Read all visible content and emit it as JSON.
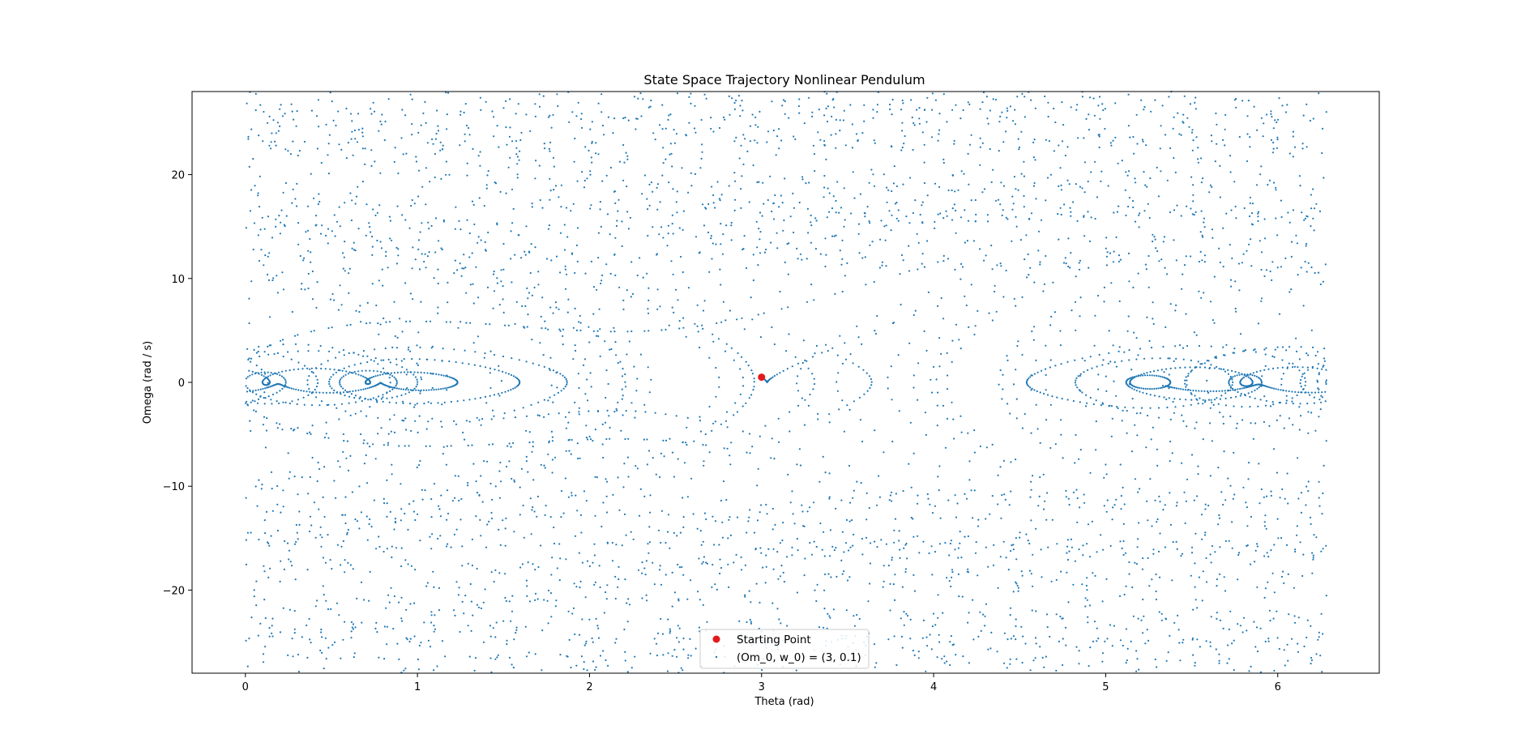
{
  "chart_data": {
    "type": "scatter",
    "title": "State Space Trajectory Nonlinear Pendulum",
    "xlabel": "Theta (rad)",
    "ylabel": "Omega (rad / s)",
    "xlim": [
      -0.31,
      6.59
    ],
    "ylim": [
      -28,
      28
    ],
    "xticks": [
      0,
      1,
      2,
      3,
      4,
      5,
      6
    ],
    "yticks": [
      -20,
      -10,
      0,
      10,
      20
    ],
    "grid": false,
    "legend_position": "bottom-center",
    "colors": {
      "trajectory": "#1f77b4",
      "start": "#e31a1c"
    },
    "starting_point": {
      "name": "Starting Point",
      "x": 3.0,
      "y": 0.5
    },
    "series": [
      {
        "name": "(Om_0, w_0) = (3, 0.1)",
        "marker": "point",
        "points": "wrapped trajectory of a driven damped pendulum, theta in [0, 2π), approx. 5000 sampled points"
      }
    ]
  }
}
